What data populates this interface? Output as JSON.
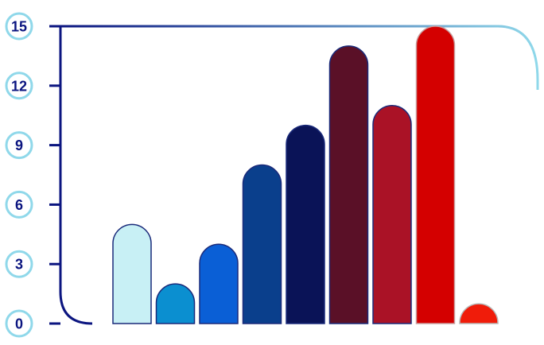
{
  "chart_data": {
    "type": "bar",
    "values": [
      5,
      2,
      4,
      8,
      10,
      14,
      11,
      15,
      1
    ],
    "bar_colors": [
      "#c8f0f5",
      "#0b8fd0",
      "#0a5fd6",
      "#0a3f8c",
      "#0a1357",
      "#5a1027",
      "#aa1226",
      "#d40000",
      "#f01c0a"
    ],
    "ylim": [
      0,
      15
    ],
    "yticks": [
      0,
      3,
      6,
      9,
      12,
      15
    ],
    "tick_labels": [
      "0",
      "3",
      "6",
      "9",
      "12",
      "15"
    ],
    "grid": false,
    "colors": {
      "axis_dark": "#0b1580",
      "axis_light": "#8fd8ea",
      "tick_text": "#0b1580",
      "bar_outline": "#1a2a7a"
    }
  }
}
